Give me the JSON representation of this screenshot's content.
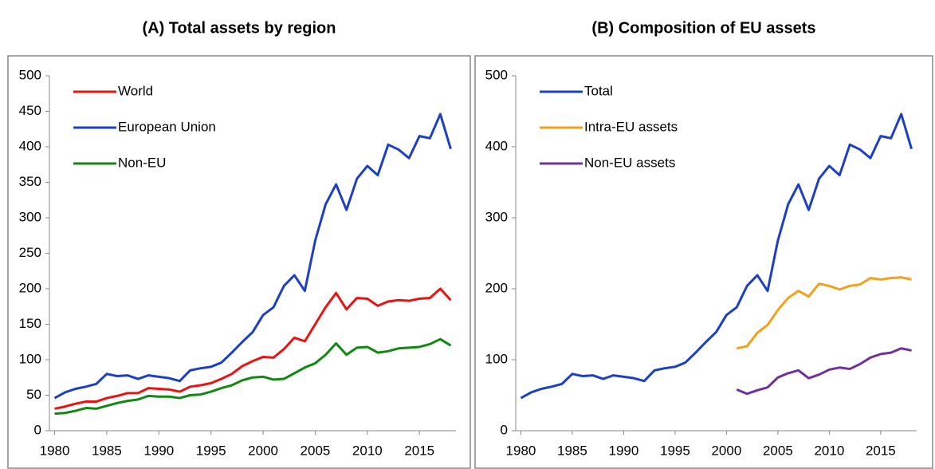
{
  "chart_data": [
    {
      "type": "line",
      "title": "(A) Total assets by region",
      "x": [
        1980,
        1981,
        1982,
        1983,
        1984,
        1985,
        1986,
        1987,
        1988,
        1989,
        1990,
        1991,
        1992,
        1993,
        1994,
        1995,
        1996,
        1997,
        1998,
        1999,
        2000,
        2001,
        2002,
        2003,
        2004,
        2005,
        2006,
        2007,
        2008,
        2009,
        2010,
        2011,
        2012,
        2013,
        2014,
        2015,
        2016,
        2017,
        2018
      ],
      "xlim": [
        1979.5,
        2018.5
      ],
      "xticks": [
        1980,
        1985,
        1990,
        1995,
        2000,
        2005,
        2010,
        2015
      ],
      "ylim": [
        0,
        500
      ],
      "yticks": [
        0,
        50,
        100,
        150,
        200,
        250,
        300,
        350,
        400,
        450,
        500
      ],
      "legend": "upper left",
      "series": [
        {
          "name": "World",
          "color": "#ee1111",
          "values": [
            31,
            34,
            38,
            41,
            41,
            46,
            49,
            53,
            53,
            60,
            59,
            58,
            55,
            62,
            64,
            67,
            73,
            80,
            91,
            98,
            104,
            103,
            115,
            131,
            126,
            150,
            174,
            194,
            171,
            187,
            186,
            176,
            182,
            184,
            183,
            186,
            187,
            200,
            184
          ]
        },
        {
          "name": "European Union",
          "color": "#1c3fc4",
          "values": [
            46,
            54,
            59,
            62,
            66,
            80,
            77,
            78,
            73,
            78,
            76,
            74,
            70,
            85,
            88,
            90,
            96,
            110,
            125,
            139,
            163,
            174,
            204,
            219,
            197,
            268,
            319,
            347,
            311,
            355,
            373,
            360,
            403,
            396,
            384,
            415,
            412,
            446,
            397
          ]
        },
        {
          "name": "Non-EU",
          "color": "#118811",
          "values": [
            24,
            25,
            28,
            32,
            31,
            35,
            39,
            42,
            44,
            49,
            48,
            48,
            46,
            50,
            51,
            55,
            60,
            64,
            71,
            75,
            76,
            72,
            73,
            81,
            89,
            95,
            107,
            123,
            107,
            117,
            118,
            110,
            112,
            116,
            117,
            118,
            122,
            129,
            120
          ]
        }
      ]
    },
    {
      "type": "line",
      "title": "(B) Composition of EU assets",
      "x": [
        1980,
        1981,
        1982,
        1983,
        1984,
        1985,
        1986,
        1987,
        1988,
        1989,
        1990,
        1991,
        1992,
        1993,
        1994,
        1995,
        1996,
        1997,
        1998,
        1999,
        2000,
        2001,
        2002,
        2003,
        2004,
        2005,
        2006,
        2007,
        2008,
        2009,
        2010,
        2011,
        2012,
        2013,
        2014,
        2015,
        2016,
        2017,
        2018
      ],
      "xlim": [
        1979.5,
        2018.5
      ],
      "xticks": [
        1980,
        1985,
        1990,
        1995,
        2000,
        2005,
        2010,
        2015
      ],
      "ylim": [
        0,
        500
      ],
      "yticks": [
        0,
        100,
        200,
        300,
        400,
        500
      ],
      "legend": "upper left",
      "series": [
        {
          "name": "Total",
          "color": "#1c3fc4",
          "values": [
            46,
            54,
            59,
            62,
            66,
            80,
            77,
            78,
            73,
            78,
            76,
            74,
            70,
            85,
            88,
            90,
            96,
            110,
            125,
            139,
            163,
            174,
            204,
            219,
            197,
            268,
            319,
            347,
            311,
            355,
            373,
            360,
            403,
            396,
            384,
            415,
            412,
            446,
            397
          ]
        },
        {
          "name": "Intra-EU assets",
          "color": "#f5a01a",
          "values": [
            null,
            null,
            null,
            null,
            null,
            null,
            null,
            null,
            null,
            null,
            null,
            null,
            null,
            null,
            null,
            null,
            null,
            null,
            null,
            null,
            null,
            116,
            119,
            138,
            149,
            170,
            187,
            197,
            189,
            207,
            204,
            199,
            204,
            206,
            215,
            213,
            215,
            216,
            213
          ]
        },
        {
          "name": "Non-EU assets",
          "color": "#7030a0",
          "values": [
            null,
            null,
            null,
            null,
            null,
            null,
            null,
            null,
            null,
            null,
            null,
            null,
            null,
            null,
            null,
            null,
            null,
            null,
            null,
            null,
            null,
            58,
            52,
            57,
            61,
            75,
            81,
            85,
            74,
            79,
            86,
            89,
            87,
            94,
            103,
            108,
            110,
            116,
            113
          ]
        }
      ]
    }
  ]
}
